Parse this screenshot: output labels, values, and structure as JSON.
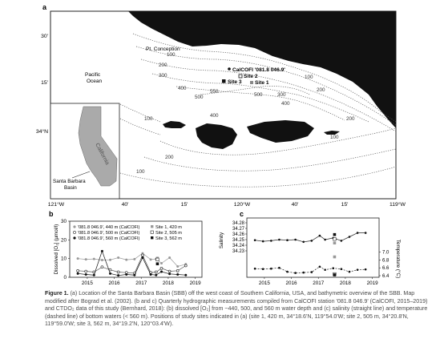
{
  "panels": {
    "a": {
      "label": "a",
      "lat_labels": [
        "30'",
        "15'",
        "34°N"
      ],
      "lon_labels": [
        "121°W",
        "40'",
        "15'",
        "120°W",
        "40'",
        "15'",
        "119°W"
      ],
      "place_labels": {
        "pt_conception": "Pt. Conception",
        "pacific": "Pacific",
        "ocean": "Ocean",
        "california": "California",
        "santa_barbara_basin_1": "Santa Barbara",
        "santa_barbara_basin_2": "Basin"
      },
      "site_labels": {
        "calcofi": "CalCOFI '081.8 046.9'",
        "site2": "Site 2",
        "site1": "Site 1",
        "site3": "Site 3"
      },
      "depth_labels": [
        "100",
        "200",
        "300",
        "400",
        "500",
        "550",
        "500",
        "300",
        "400",
        "100",
        "200",
        "100",
        "400",
        "200",
        "100",
        "200",
        "100"
      ]
    },
    "b": {
      "label": "b",
      "legend": {
        "calcofi_440": "'081.8 046.9', 440 m (CalCOFI)",
        "calcofi_500": "'081.8 046.9', 500 m (CalCOFI)",
        "calcofi_560": "'081.8 046.9', 560 m (CalCOFI)",
        "site1": "Site 1, 420 m",
        "site2": "Site 2, 505 m",
        "site3": "Site 3, 562 m"
      }
    },
    "c": {
      "label": "c"
    }
  },
  "caption": {
    "fig_label": "Figure 1.",
    "text": "(a) Location of the Santa Barbara Basin (SBB) off the west coast of Southern California, USA, and bathymetric overview of the SBB. Map modified after Bograd et al. (2002). (b and c) Quarterly hydrographic measurements compiled from CalCOFI station '081.8 046.9' (CalCOFI, 2015–2019) and CTDO₂ data of this study (Bernhard, 2018): (b) dissolved [O₂] from ~440, 500, and 560 m water depth and (c) salinity (straight line) and temperature (dashed line) of bottom waters (< 560 m). Positions of study sites indicated in (a) (site 1, 420 m, 34°18.6'N, 119°54.0'W; site 2, 505 m, 34°20.8'N, 119°59.0'W; site 3, 562 m, 34°19.2'N, 120°03.4'W)."
  },
  "chart_data": [
    {
      "type": "line",
      "panel": "b",
      "xlabel": "",
      "ylabel": "Dissolved [O₂] (µmol/l)",
      "xlim": [
        2014.7,
        2019.6
      ],
      "ylim": [
        0,
        30
      ],
      "x_ticks": [
        "2015",
        "2016",
        "2017",
        "2018",
        "2019"
      ],
      "y_ticks": [
        0,
        10,
        20,
        30
      ],
      "series": [
        {
          "name": "'081.8 046.9', 440 m (CalCOFI)",
          "marker": "circle-grey",
          "x": [
            2015.0,
            2015.3,
            2015.6,
            2015.9,
            2016.2,
            2016.5,
            2016.8,
            2017.1,
            2017.4,
            2017.7,
            2017.9,
            2018.1,
            2018.4,
            2018.7,
            2019.0
          ],
          "y": [
            10.0,
            9.6,
            9.8,
            9.2,
            9.3,
            10.5,
            9.4,
            9.7,
            12.8,
            9.5,
            9.8,
            7.5,
            10.5,
            5.8,
            7.0
          ]
        },
        {
          "name": "'081.8 046.9', 500 m (CalCOFI)",
          "marker": "circle-open",
          "x": [
            2015.0,
            2015.3,
            2015.6,
            2015.9,
            2016.2,
            2016.5,
            2016.8,
            2017.1,
            2017.4,
            2017.7,
            2017.9,
            2018.1,
            2018.4,
            2018.7,
            2019.0
          ],
          "y": [
            3.5,
            3.2,
            2.8,
            5.5,
            4.0,
            2.8,
            2.5,
            2.2,
            11.8,
            2.5,
            2.8,
            4.8,
            3.2,
            3.5,
            6.2
          ]
        },
        {
          "name": "'081.8 046.9', 560 m (CalCOFI)",
          "marker": "circle-black",
          "x": [
            2015.0,
            2015.3,
            2015.6,
            2015.9,
            2016.2,
            2016.5,
            2016.8,
            2017.1,
            2017.4,
            2017.7,
            2017.9,
            2018.1,
            2018.4,
            2018.7,
            2019.0
          ],
          "y": [
            2.0,
            1.5,
            1.2,
            14.0,
            2.0,
            1.0,
            1.5,
            1.2,
            10.5,
            1.5,
            1.2,
            3.0,
            1.8,
            1.5,
            1.2
          ]
        },
        {
          "name": "Site 1, 420 m",
          "marker": "square-grey",
          "x": [
            2017.95
          ],
          "y": [
            10.2
          ]
        },
        {
          "name": "Site 2, 505 m",
          "marker": "square-open",
          "x": [
            2017.95
          ],
          "y": [
            9.5
          ]
        },
        {
          "name": "Site 3, 562 m",
          "marker": "square-black",
          "x": [
            2017.95
          ],
          "y": [
            7.2
          ]
        }
      ]
    },
    {
      "type": "line",
      "panel": "c",
      "xlabel": "",
      "ylabel_left": "Salinity",
      "ylabel_right": "Temperature (°C)",
      "xlim": [
        2014.7,
        2019.6
      ],
      "ylim_left": [
        34.2,
        34.28
      ],
      "ylim_right": [
        6.4,
        7.3
      ],
      "x_ticks": [
        "2015",
        "2016",
        "2017",
        "2018",
        "2019"
      ],
      "y_ticks_left": [
        "34.28",
        "34.27",
        "34.26",
        "34.25",
        "34.24",
        "34.23"
      ],
      "y_ticks_right": [
        "7.0",
        "6.8",
        "6.6",
        "6.4"
      ],
      "series": [
        {
          "name": "",
          "axis": "left",
          "line": "solid",
          "x": [
            2015.0,
            2015.3,
            2015.6,
            2015.9,
            2016.2,
            2016.5,
            2016.8,
            2017.1,
            2017.4,
            2017.6,
            2017.9,
            2018.2,
            2018.5,
            2018.8,
            2019.1
          ],
          "y": [
            34.249,
            34.247,
            34.248,
            34.25,
            34.249,
            34.25,
            34.246,
            34.248,
            34.257,
            34.25,
            34.253,
            34.248,
            34.255,
            34.262,
            34.262
          ]
        },
        {
          "name": "",
          "axis": "right",
          "line": "dashed",
          "x": [
            2015.0,
            2015.3,
            2015.6,
            2015.9,
            2016.2,
            2016.5,
            2016.8,
            2017.1,
            2017.4,
            2017.6,
            2017.9,
            2018.2,
            2018.5,
            2018.8,
            2019.1
          ],
          "y": [
            6.58,
            6.57,
            6.58,
            6.6,
            6.5,
            6.47,
            6.48,
            6.49,
            6.63,
            6.55,
            6.59,
            6.57,
            6.5,
            6.55,
            6.56
          ]
        },
        {
          "name": "Site 1",
          "axis": "left",
          "marker": "square-grey",
          "x": [
            2017.95
          ],
          "y": [
            34.244
          ]
        },
        {
          "name": "Site 2",
          "axis": "left",
          "marker": "square-open",
          "x": [
            2017.95
          ],
          "y": [
            34.251
          ]
        },
        {
          "name": "Site 3",
          "axis": "left",
          "marker": "square-black",
          "x": [
            2017.95
          ],
          "y": [
            34.259
          ]
        },
        {
          "name": "Site 1",
          "axis": "right",
          "marker": "square-grey",
          "x": [
            2017.95
          ],
          "y": [
            6.88
          ]
        },
        {
          "name": "Site 2",
          "axis": "right",
          "marker": "square-open",
          "x": [
            2017.95
          ],
          "y": [
            6.44
          ]
        },
        {
          "name": "Site 3",
          "axis": "right",
          "marker": "square-black",
          "x": [
            2017.95
          ],
          "y": [
            6.42
          ]
        }
      ]
    }
  ]
}
